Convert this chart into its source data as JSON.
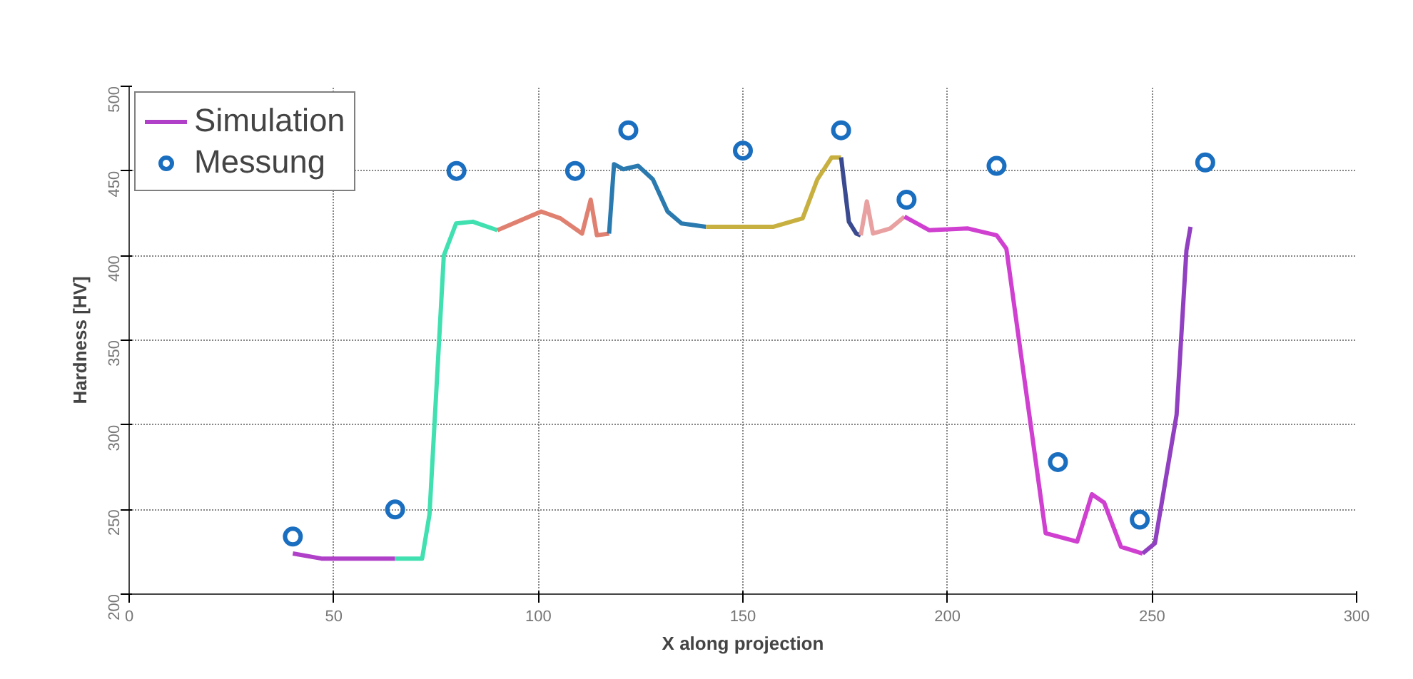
{
  "chart_data": {
    "type": "line",
    "xlabel": "X along projection",
    "ylabel": "Hardness [HV]",
    "xlim": [
      0,
      300
    ],
    "xticks": [
      0,
      50,
      100,
      150,
      200,
      250,
      300
    ],
    "ylim": [
      200,
      500
    ],
    "yticks": [
      200,
      250,
      300,
      350,
      400,
      450,
      500
    ],
    "grid": true,
    "legend": "top left",
    "series": [
      {
        "name": "Simulation",
        "color": "#b040c8",
        "x": [
          40,
          47,
          65
        ],
        "values": [
          224,
          221,
          221
        ]
      },
      {
        "color": "#40e0b0",
        "x": [
          65,
          71.6,
          73.4,
          76.9,
          79.9,
          84,
          90
        ],
        "values": [
          221,
          221,
          247,
          400,
          419,
          420,
          415
        ]
      },
      {
        "color": "#e08070",
        "x": [
          90,
          100.7,
          105.4,
          110.7,
          112.8,
          114.3,
          117.3
        ],
        "values": [
          415,
          426,
          422,
          413,
          433,
          412,
          413
        ]
      },
      {
        "color": "#2a7ab0",
        "x": [
          117.3,
          118.5,
          120.8,
          124.4,
          128,
          131.6,
          135,
          141
        ],
        "values": [
          413,
          454,
          451,
          453,
          445,
          426,
          419,
          417
        ]
      },
      {
        "color": "#c8b040",
        "x": [
          141,
          157.5,
          164.6,
          168.2,
          171.7,
          174
        ],
        "values": [
          417,
          417,
          422,
          445,
          458,
          458
        ]
      },
      {
        "color": "#3a4a90",
        "x": [
          174,
          175.9,
          177.7,
          178.8
        ],
        "values": [
          458,
          420,
          413,
          412
        ]
      },
      {
        "color": "#e8a0a0",
        "x": [
          178.8,
          180.3,
          181.8,
          186,
          189.5
        ],
        "values": [
          412,
          432,
          413,
          416,
          423
        ]
      },
      {
        "color": "#d040d0",
        "x": [
          189.5,
          195.5,
          205,
          212,
          214.4,
          224,
          231.7,
          235.3,
          238.3,
          242.4,
          247.7
        ],
        "values": [
          423,
          415,
          416,
          412,
          404,
          236,
          231,
          259,
          254,
          228,
          224
        ]
      },
      {
        "color": "#9040c0",
        "x": [
          247.7,
          250.7,
          256,
          258.4,
          259.4
        ],
        "values": [
          224,
          230,
          306,
          403,
          417
        ]
      },
      {
        "name": "Messung",
        "type": "scatter",
        "marker": "circle",
        "color": "#1a6ec0",
        "x": [
          40,
          65,
          80,
          109,
          122,
          150,
          174,
          190,
          212,
          227,
          247,
          263
        ],
        "values": [
          234,
          250,
          450,
          450,
          474,
          462,
          474,
          433,
          453,
          278,
          244,
          455
        ]
      }
    ]
  }
}
